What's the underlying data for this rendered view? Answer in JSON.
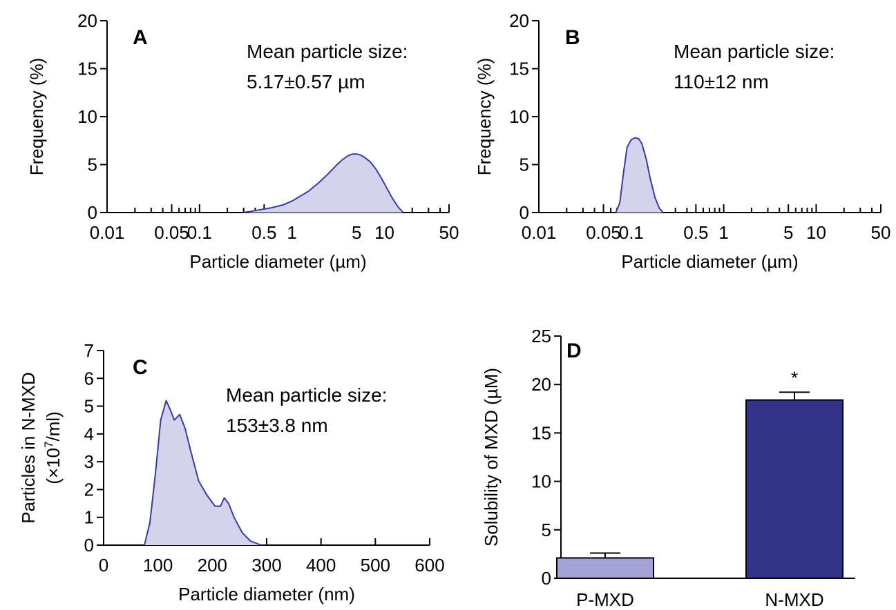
{
  "chart_data": [
    {
      "id": "A",
      "type": "area",
      "panel_label": "A",
      "xlabel": "Particle diameter (µm)",
      "ylabel": "Frequency (%)",
      "xscale": "log",
      "xlim": [
        0.01,
        50
      ],
      "ylim": [
        0,
        20
      ],
      "xticks": [
        0.01,
        0.05,
        0.1,
        0.5,
        1,
        5,
        10,
        50
      ],
      "xtick_labels": [
        "0.01",
        "0.05",
        "0.1",
        "0.5",
        "1",
        "5",
        "10",
        "50"
      ],
      "yticks": [
        0,
        5,
        10,
        15,
        20
      ],
      "annotation": [
        "Mean particle size:",
        "5.17±0.57 µm"
      ],
      "x": [
        0.3,
        0.4,
        0.6,
        0.8,
        1.0,
        1.5,
        2.0,
        2.5,
        3.0,
        3.5,
        4.0,
        4.5,
        5.0,
        5.5,
        6.0,
        7.0,
        8.0,
        9.0,
        10.0,
        12.0,
        14.0,
        16.0
      ],
      "y": [
        0.0,
        0.2,
        0.5,
        0.8,
        1.2,
        2.2,
        3.2,
        4.1,
        4.9,
        5.5,
        5.9,
        6.1,
        6.1,
        6.0,
        5.8,
        5.3,
        4.6,
        3.8,
        3.0,
        1.6,
        0.6,
        0.0
      ],
      "grid": false,
      "legend": "none"
    },
    {
      "id": "B",
      "type": "area",
      "panel_label": "B",
      "xlabel": "Particle diameter (µm)",
      "ylabel": "Frequency (%)",
      "xscale": "log",
      "xlim": [
        0.01,
        50
      ],
      "ylim": [
        0,
        20
      ],
      "xticks": [
        0.01,
        0.05,
        0.1,
        0.5,
        1,
        5,
        10,
        50
      ],
      "xtick_labels": [
        "0.01",
        "0.05",
        "0.1",
        "0.5",
        "1",
        "5",
        "10",
        "50"
      ],
      "yticks": [
        0,
        5,
        10,
        15,
        20
      ],
      "annotation": [
        "Mean particle size:",
        "110±12 nm"
      ],
      "x": [
        0.068,
        0.075,
        0.082,
        0.09,
        0.1,
        0.11,
        0.12,
        0.13,
        0.145,
        0.16,
        0.18,
        0.2,
        0.22
      ],
      "y": [
        0.0,
        1.0,
        4.0,
        6.8,
        7.6,
        7.8,
        7.7,
        7.2,
        5.6,
        3.6,
        1.6,
        0.5,
        0.0
      ],
      "grid": false,
      "legend": "none"
    },
    {
      "id": "C",
      "type": "area",
      "panel_label": "C",
      "xlabel": "Particle diameter (nm)",
      "ylabel": "Particles in N-MXD",
      "ylabel2": "(×10",
      "ylabel2_sup": "7",
      "ylabel2_tail": "/ml)",
      "xlim": [
        0,
        600
      ],
      "ylim": [
        0,
        7
      ],
      "xticks": [
        0,
        100,
        200,
        300,
        400,
        500,
        600
      ],
      "xtick_labels": [
        "0",
        "100",
        "200",
        "300",
        "400",
        "500",
        "600"
      ],
      "yticks": [
        0,
        1,
        2,
        3,
        4,
        5,
        6,
        7
      ],
      "annotation": [
        "Mean particle size:",
        "153±3.8 nm"
      ],
      "x": [
        75,
        85,
        95,
        105,
        115,
        122,
        130,
        140,
        150,
        160,
        175,
        190,
        205,
        215,
        222,
        230,
        240,
        255,
        270,
        290
      ],
      "y": [
        0.0,
        0.8,
        2.5,
        4.5,
        5.2,
        4.9,
        4.5,
        4.7,
        4.2,
        3.4,
        2.3,
        1.8,
        1.4,
        1.4,
        1.7,
        1.5,
        1.0,
        0.45,
        0.15,
        0.0
      ],
      "grid": false,
      "legend": "none"
    },
    {
      "id": "D",
      "type": "bar",
      "panel_label": "D",
      "ylabel": "Solubility of MXD (µM)",
      "ylim": [
        0,
        25
      ],
      "yticks": [
        0,
        5,
        10,
        15,
        20,
        25
      ],
      "categories": [
        "P-MXD",
        "N-MXD"
      ],
      "values": [
        2.1,
        18.4
      ],
      "errors": [
        0.5,
        0.8
      ],
      "bar_colors": [
        "#a3a3d8",
        "#333388"
      ],
      "significance": [
        "",
        "*"
      ],
      "grid": false,
      "legend": "none"
    }
  ],
  "colors": {
    "curve_fill": "#d3d3ee",
    "curve_stroke": "#3a3aa0",
    "axis": "#000000"
  }
}
